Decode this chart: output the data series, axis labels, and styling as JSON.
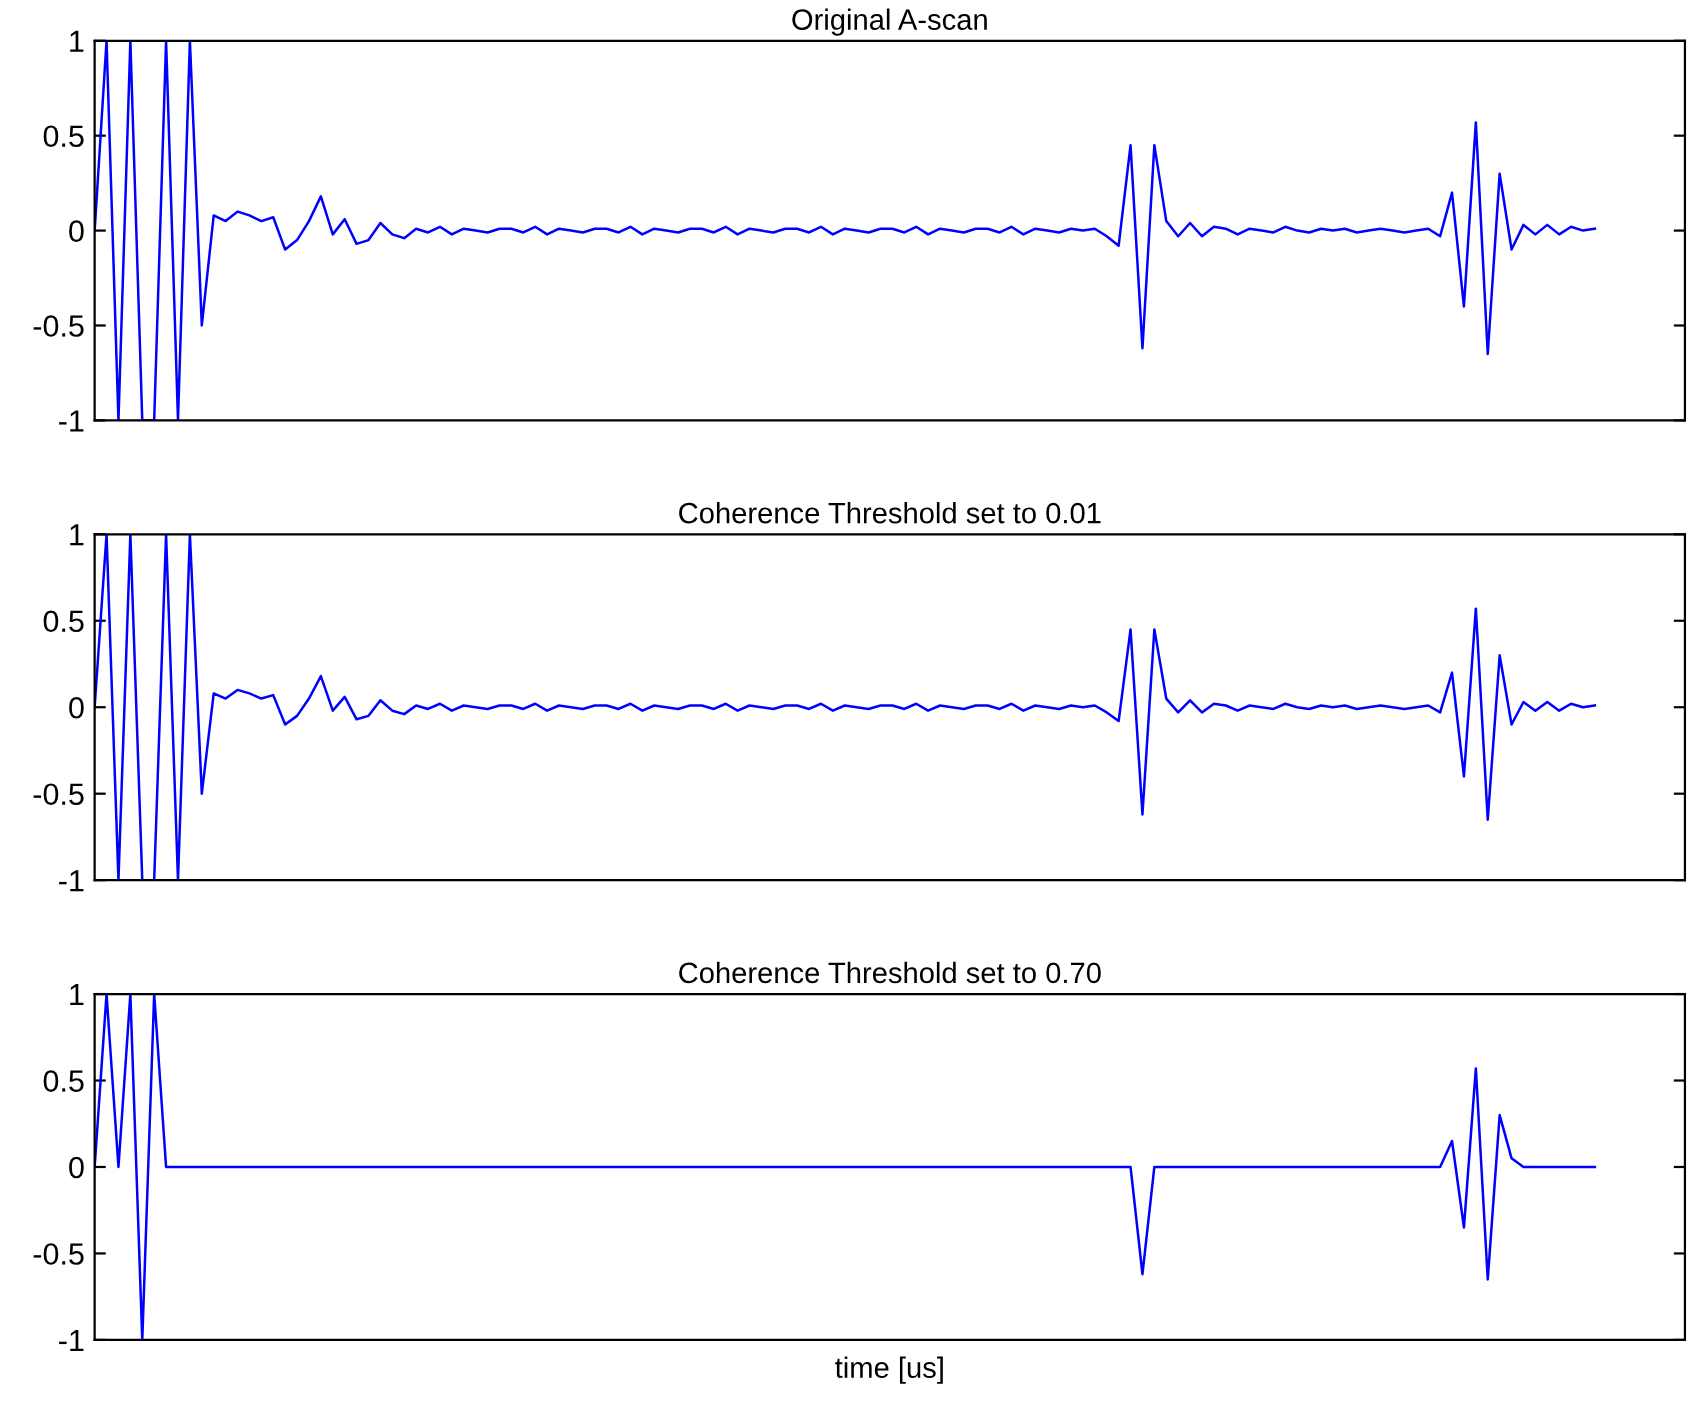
{
  "chart_data": [
    {
      "type": "line",
      "title": "Original A-scan",
      "categories": [
        null,
        null,
        null,
        null,
        null,
        null,
        null,
        null,
        null,
        null,
        null,
        null,
        null,
        null,
        null,
        null,
        null,
        null,
        null,
        null,
        null,
        null,
        null,
        null,
        null,
        null,
        null,
        null,
        null,
        null,
        null,
        null,
        null,
        null,
        null,
        null,
        null,
        null,
        null,
        null,
        null,
        null,
        null,
        null,
        null,
        null,
        null,
        null,
        null,
        null,
        null,
        null,
        null,
        null,
        null,
        null,
        null,
        null,
        null,
        null,
        null,
        null,
        null,
        null,
        null,
        null,
        null,
        null,
        null,
        null,
        null,
        null,
        null,
        null,
        null,
        null,
        null,
        null,
        null,
        null,
        null,
        null,
        null,
        null,
        null,
        null,
        null,
        null,
        null,
        null,
        null,
        null,
        null,
        null,
        null,
        null,
        null,
        null,
        null,
        null,
        null,
        null,
        null,
        null,
        null,
        null,
        null,
        null,
        null,
        null,
        null,
        null,
        null,
        null,
        null,
        null,
        null,
        null,
        null,
        null,
        null,
        null,
        null,
        null,
        null,
        null,
        null
      ],
      "series": [
        {
          "color": "#0000ff",
          "values": [
            0,
            1,
            -1,
            1,
            -1,
            -1,
            1,
            -1,
            1,
            -0.5,
            0.08,
            0.05,
            0.1,
            0.08,
            0.05,
            0.07,
            -0.1,
            -0.05,
            0.05,
            0.18,
            -0.02,
            0.06,
            -0.07,
            -0.05,
            0.04,
            -0.02,
            -0.04,
            0.01,
            -0.01,
            0.02,
            -0.02,
            0.01,
            0,
            -0.01,
            0.01,
            0.01,
            -0.01,
            0.02,
            -0.02,
            0.01,
            0,
            -0.01,
            0.01,
            0.01,
            -0.01,
            0.02,
            -0.02,
            0.01,
            0,
            -0.01,
            0.01,
            0.01,
            -0.01,
            0.02,
            -0.02,
            0.01,
            0,
            -0.01,
            0.01,
            0.01,
            -0.01,
            0.02,
            -0.02,
            0.01,
            0,
            -0.01,
            0.01,
            0.01,
            -0.01,
            0.02,
            -0.02,
            0.01,
            0,
            -0.01,
            0.01,
            0.01,
            -0.01,
            0.02,
            -0.02,
            0.01,
            0,
            -0.01,
            0.01,
            0,
            0.01,
            -0.03,
            -0.08,
            0.45,
            -0.62,
            0.45,
            0.05,
            -0.03,
            0.04,
            -0.03,
            0.02,
            0.01,
            -0.02,
            0.01,
            0,
            -0.01,
            0.02,
            0,
            -0.01,
            0.01,
            0,
            0.01,
            -0.01,
            0,
            0.01,
            0,
            -0.01,
            0,
            0.01,
            -0.03,
            0.2,
            -0.4,
            0.57,
            -0.65,
            0.3,
            -0.1,
            0.03,
            -0.02,
            0.03,
            -0.02,
            0.02,
            0.0,
            0.01
          ]
        }
      ],
      "ylim": [
        -1,
        1
      ],
      "yticks": [
        -1,
        -0.5,
        0,
        0.5,
        1
      ],
      "tick_labels": "y"
    },
    {
      "type": "line",
      "title": "Coherence Threshold set to 0.01",
      "categories": [
        null,
        null,
        null,
        null,
        null,
        null,
        null,
        null,
        null,
        null,
        null,
        null,
        null,
        null,
        null,
        null,
        null,
        null,
        null,
        null,
        null,
        null,
        null,
        null,
        null,
        null,
        null,
        null,
        null,
        null,
        null,
        null,
        null,
        null,
        null,
        null,
        null,
        null,
        null,
        null,
        null,
        null,
        null,
        null,
        null,
        null,
        null,
        null,
        null,
        null,
        null,
        null,
        null,
        null,
        null,
        null,
        null,
        null,
        null,
        null,
        null,
        null,
        null,
        null,
        null,
        null,
        null,
        null,
        null,
        null,
        null,
        null,
        null,
        null,
        null,
        null,
        null,
        null,
        null,
        null,
        null,
        null,
        null,
        null,
        null,
        null,
        null,
        null,
        null,
        null,
        null,
        null,
        null,
        null,
        null,
        null,
        null,
        null,
        null,
        null,
        null,
        null,
        null,
        null,
        null,
        null,
        null,
        null,
        null,
        null,
        null,
        null,
        null,
        null,
        null,
        null,
        null,
        null,
        null,
        null,
        null,
        null,
        null,
        null,
        null,
        null,
        null
      ],
      "series": [
        {
          "color": "#0000ff",
          "values": [
            0,
            1,
            -1,
            1,
            -1,
            -1,
            1,
            -1,
            1,
            -0.5,
            0.08,
            0.05,
            0.1,
            0.08,
            0.05,
            0.07,
            -0.1,
            -0.05,
            0.05,
            0.18,
            -0.02,
            0.06,
            -0.07,
            -0.05,
            0.04,
            -0.02,
            -0.04,
            0.01,
            -0.01,
            0.02,
            -0.02,
            0.01,
            0,
            -0.01,
            0.01,
            0.01,
            -0.01,
            0.02,
            -0.02,
            0.01,
            0,
            -0.01,
            0.01,
            0.01,
            -0.01,
            0.02,
            -0.02,
            0.01,
            0,
            -0.01,
            0.01,
            0.01,
            -0.01,
            0.02,
            -0.02,
            0.01,
            0,
            -0.01,
            0.01,
            0.01,
            -0.01,
            0.02,
            -0.02,
            0.01,
            0,
            -0.01,
            0.01,
            0.01,
            -0.01,
            0.02,
            -0.02,
            0.01,
            0,
            -0.01,
            0.01,
            0.01,
            -0.01,
            0.02,
            -0.02,
            0.01,
            0,
            -0.01,
            0.01,
            0,
            0.01,
            -0.03,
            -0.08,
            0.45,
            -0.62,
            0.45,
            0.05,
            -0.03,
            0.04,
            -0.03,
            0.02,
            0.01,
            -0.02,
            0.01,
            0,
            -0.01,
            0.02,
            0,
            -0.01,
            0.01,
            0,
            0.01,
            -0.01,
            0,
            0.01,
            0,
            -0.01,
            0,
            0.01,
            -0.03,
            0.2,
            -0.4,
            0.57,
            -0.65,
            0.3,
            -0.1,
            0.03,
            -0.02,
            0.03,
            -0.02,
            0.02,
            0.0,
            0.01
          ]
        }
      ],
      "ylim": [
        -1,
        1
      ],
      "yticks": [
        -1,
        -0.5,
        0,
        0.5,
        1
      ],
      "tick_labels": "y"
    },
    {
      "type": "line",
      "title": "Coherence Threshold set to 0.70",
      "xlabel": "time [us]",
      "categories": [
        null,
        null,
        null,
        null,
        null,
        null,
        null,
        null,
        null,
        null,
        null,
        null,
        null,
        null,
        null,
        null,
        null,
        null,
        null,
        null,
        null,
        null,
        null,
        null,
        null,
        null,
        null,
        null,
        null,
        null,
        null,
        null,
        null,
        null,
        null,
        null,
        null,
        null,
        null,
        null,
        null,
        null,
        null,
        null,
        null,
        null,
        null,
        null,
        null,
        null,
        null,
        null,
        null,
        null,
        null,
        null,
        null,
        null,
        null,
        null,
        null,
        null,
        null,
        null,
        null,
        null,
        null,
        null,
        null,
        null,
        null,
        null,
        null,
        null,
        null,
        null,
        null,
        null,
        null,
        null,
        null,
        null,
        null,
        null,
        null,
        null,
        null,
        null,
        null,
        null,
        null,
        null,
        null,
        null,
        null,
        null,
        null,
        null,
        null,
        null,
        null,
        null,
        null,
        null,
        null,
        null,
        null,
        null,
        null,
        null,
        null,
        null,
        null,
        null,
        null,
        null,
        null,
        null,
        null,
        null,
        null,
        null,
        null,
        null,
        null,
        null,
        null
      ],
      "series": [
        {
          "color": "#0000ff",
          "values": [
            0,
            1,
            0,
            1,
            -1,
            1,
            0,
            0,
            0,
            0,
            0,
            0,
            0,
            0,
            0,
            0,
            0,
            0,
            0,
            0,
            0,
            0,
            0,
            0,
            0,
            0,
            0,
            0,
            0,
            0,
            0,
            0,
            0,
            0,
            0,
            0,
            0,
            0,
            0,
            0,
            0,
            0,
            0,
            0,
            0,
            0,
            0,
            0,
            0,
            0,
            0,
            0,
            0,
            0,
            0,
            0,
            0,
            0,
            0,
            0,
            0,
            0,
            0,
            0,
            0,
            0,
            0,
            0,
            0,
            0,
            0,
            0,
            0,
            0,
            0,
            0,
            0,
            0,
            0,
            0,
            0,
            0,
            0,
            0,
            0,
            0,
            0,
            0,
            -0.62,
            0,
            0,
            0,
            0,
            0,
            0,
            0,
            0,
            0,
            0,
            0,
            0,
            0,
            0,
            0,
            0,
            0,
            0,
            0,
            0,
            0,
            0,
            0,
            0,
            0,
            0.15,
            -0.35,
            0.57,
            -0.65,
            0.3,
            0.05,
            0,
            0,
            0,
            0,
            0,
            0,
            0
          ]
        }
      ],
      "ylim": [
        -1,
        1
      ],
      "yticks": [
        -1,
        -0.5,
        0,
        0.5,
        1
      ],
      "tick_labels": "y"
    }
  ]
}
